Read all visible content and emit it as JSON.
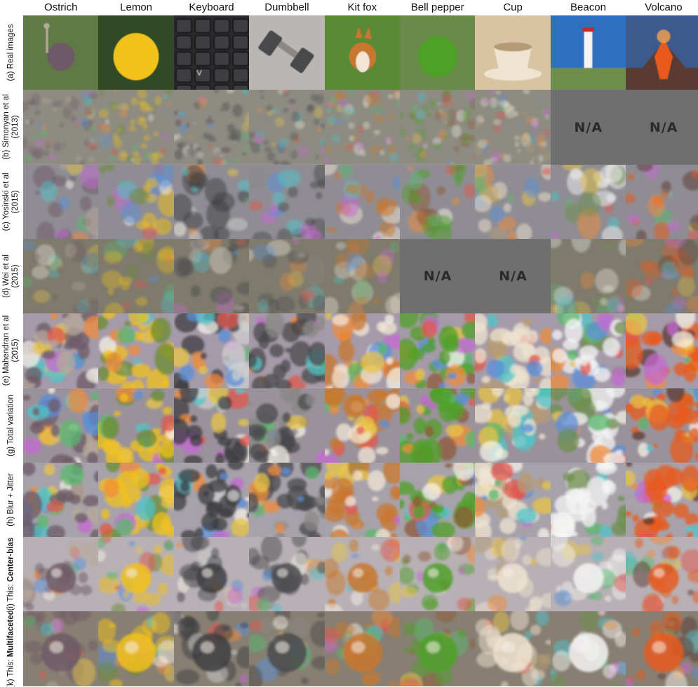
{
  "columns": [
    {
      "id": "ostrich",
      "label": "Ostrich"
    },
    {
      "id": "lemon",
      "label": "Lemon"
    },
    {
      "id": "keyboard",
      "label": "Keyboard"
    },
    {
      "id": "dumbbell",
      "label": "Dumbbell"
    },
    {
      "id": "kit-fox",
      "label": "Kit fox"
    },
    {
      "id": "bell-pepper",
      "label": "Bell pepper"
    },
    {
      "id": "cup",
      "label": "Cup"
    },
    {
      "id": "beacon",
      "label": "Beacon"
    },
    {
      "id": "volcano",
      "label": "Volcano"
    }
  ],
  "rows": [
    {
      "id": "real-images",
      "label_parts": [
        [
          {
            "text": "(a) Real images",
            "bold": false
          }
        ]
      ],
      "na_columns": [],
      "style": "real"
    },
    {
      "id": "simonyan",
      "label_parts": [
        [
          {
            "text": "(b) Simonyan et al",
            "bold": false
          }
        ],
        [
          {
            "text": "(2013)",
            "bold": false
          }
        ]
      ],
      "na_columns": [
        "beacon",
        "volcano"
      ],
      "style": "simonyan"
    },
    {
      "id": "yosinski",
      "label_parts": [
        [
          {
            "text": "(c) Yosinski et al",
            "bold": false
          }
        ],
        [
          {
            "text": "(2015)",
            "bold": false
          }
        ]
      ],
      "na_columns": [],
      "style": "yosinski"
    },
    {
      "id": "wei",
      "label_parts": [
        [
          {
            "text": "(d) Wei et al",
            "bold": false
          }
        ],
        [
          {
            "text": "(2015)",
            "bold": false
          }
        ]
      ],
      "na_columns": [
        "bell-pepper",
        "cup"
      ],
      "style": "wei"
    },
    {
      "id": "mahendran",
      "label_parts": [
        [
          {
            "text": "(e) Mahendran et al",
            "bold": false
          }
        ],
        [
          {
            "text": "(2015)",
            "bold": false
          }
        ]
      ],
      "na_columns": [],
      "style": "mahendran"
    },
    {
      "id": "total-variation",
      "label_parts": [
        [
          {
            "text": "(g) Total variation",
            "bold": false
          }
        ]
      ],
      "na_columns": [],
      "style": "tv"
    },
    {
      "id": "blur-jitter",
      "label_parts": [
        [
          {
            "text": "(h) Blur + Jitter",
            "bold": false
          }
        ]
      ],
      "na_columns": [],
      "style": "blur"
    },
    {
      "id": "center-bias",
      "label_parts": [
        [
          {
            "text": "(i) This: ",
            "bold": false
          },
          {
            "text": "Center-bias",
            "bold": true
          }
        ]
      ],
      "na_columns": [],
      "style": "center"
    },
    {
      "id": "multifaceted",
      "label_parts": [
        [
          {
            "text": "(k) This: ",
            "bold": false
          },
          {
            "text": "Multifaceted",
            "bold": true
          }
        ]
      ],
      "na_columns": [],
      "style": "multi"
    }
  ],
  "na_text": "N/A",
  "palette": {
    "ostrich": {
      "bg": "#5f7a45",
      "subject": "#6e5a66",
      "accent": "#b7a89a"
    },
    "lemon": {
      "bg": "#2f4a25",
      "subject": "#f2c21b",
      "accent": "#6b8c33"
    },
    "keyboard": {
      "bg": "#2a2a2c",
      "subject": "#3e3e42",
      "accent": "#cfcfcf"
    },
    "dumbbell": {
      "bg": "#b9b6b4",
      "subject": "#4a4a4c",
      "accent": "#8a8886"
    },
    "kit-fox": {
      "bg": "#5a8a35",
      "subject": "#c9772e",
      "accent": "#f2e6d6"
    },
    "bell-pepper": {
      "bg": "#6a8a4c",
      "subject": "#4fa028",
      "accent": "#8f5a3a"
    },
    "cup": {
      "bg": "#d8c3a2",
      "subject": "#efe4d0",
      "accent": "#b59b75"
    },
    "beacon": {
      "bg": "#2e6fc0",
      "subject": "#f4f4f4",
      "accent": "#6e8f4c"
    },
    "volcano": {
      "bg": "#3d5a8c",
      "subject": "#e85a1c",
      "accent": "#5a3a32"
    }
  }
}
